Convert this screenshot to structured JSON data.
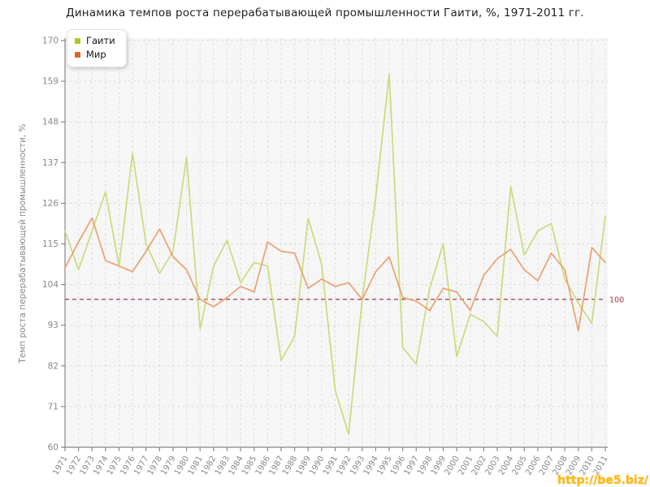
{
  "page": {
    "watermark": "http://be5.biz/"
  },
  "chart_data": {
    "type": "line",
    "title": "Динамика темпов роста перерабатывающей промышленности Гаити, %, 1971-2011 гг.",
    "ylabel": "Темп роста перерабатывающей промышленности, %",
    "xlabel": "",
    "x": [
      1971,
      1972,
      1973,
      1974,
      1975,
      1976,
      1977,
      1978,
      1979,
      1980,
      1981,
      1982,
      1983,
      1984,
      1985,
      1986,
      1987,
      1988,
      1989,
      1990,
      1991,
      1992,
      1993,
      1994,
      1995,
      1996,
      1997,
      1998,
      1999,
      2000,
      2001,
      2002,
      2003,
      2004,
      2005,
      2006,
      2007,
      2008,
      2009,
      2010,
      2011
    ],
    "y_ticks": [
      60,
      71,
      82,
      93,
      104,
      115,
      126,
      137,
      148,
      159,
      170
    ],
    "ylim": [
      60,
      170
    ],
    "grid": "dashed",
    "legend_position": "top-left",
    "ref_line": {
      "value": 100,
      "label": "100",
      "line_color": "#aa4757",
      "label_color": "#993b4d"
    },
    "series": [
      {
        "name": "Гаити",
        "line_color": "#c9dc7a",
        "marker_color": "#aacc22",
        "values": [
          118.5,
          108,
          118.5,
          129,
          109,
          139.5,
          115,
          107,
          113,
          138.5,
          92,
          109,
          116,
          104.5,
          110,
          109,
          83.5,
          90,
          122,
          109.5,
          75.5,
          63.5,
          100,
          127.5,
          161,
          87,
          82.5,
          103,
          115,
          84.5,
          96,
          94,
          90,
          130.5,
          112,
          118.5,
          120.5,
          105.5,
          99,
          93.5,
          122.5
        ]
      },
      {
        "name": "Мир",
        "line_color": "#eda070",
        "marker_color": "#dd6622",
        "values": [
          108.5,
          115.5,
          122,
          110.5,
          109,
          107.5,
          113,
          119,
          111.5,
          108,
          100,
          98,
          100.5,
          103.5,
          102,
          115.5,
          113,
          112.5,
          103,
          105.5,
          103.5,
          104.5,
          100,
          107.5,
          111.5,
          100.5,
          99.5,
          97,
          103,
          102,
          97,
          106.5,
          111,
          113.5,
          108,
          105,
          112.5,
          108,
          91.5,
          114,
          110
        ]
      }
    ],
    "colors": {
      "axis": "#888888",
      "tick_label": "#888888",
      "grid": "#dddddd",
      "plot_bg": "#f6f6f6",
      "title": "#222222"
    }
  }
}
